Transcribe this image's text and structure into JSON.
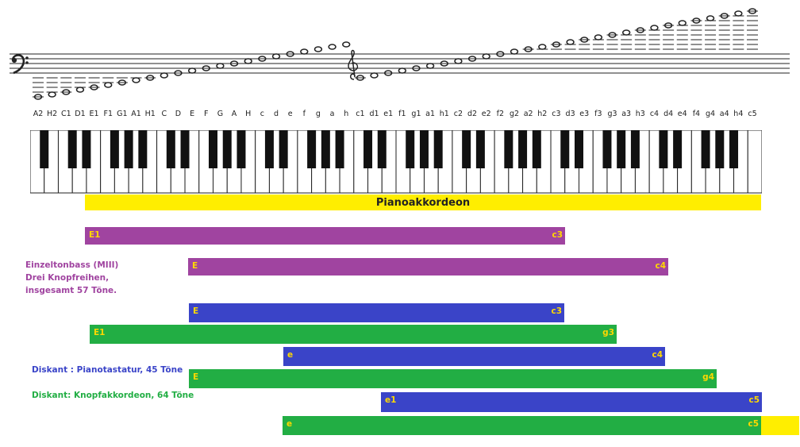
{
  "diagram": {
    "notes": [
      "A2",
      "H2",
      "C1",
      "D1",
      "E1",
      "F1",
      "G1",
      "A1",
      "H1",
      "C",
      "D",
      "E",
      "F",
      "G",
      "A",
      "H",
      "c",
      "d",
      "e",
      "f",
      "g",
      "a",
      "h",
      "c1",
      "d1",
      "e1",
      "f1",
      "g1",
      "a1",
      "h1",
      "c2",
      "d2",
      "e2",
      "f2",
      "g2",
      "a2",
      "h2",
      "c3",
      "d3",
      "e3",
      "f3",
      "g3",
      "a3",
      "h3",
      "c4",
      "d4",
      "e4",
      "f4",
      "g4",
      "a4",
      "h4",
      "c5"
    ],
    "title": "Pianoakkordeon",
    "colors": {
      "title_bar": "#ffee00",
      "purple": "#a044a0",
      "blue": "#3a44c8",
      "green": "#22ae44",
      "label": "#ffd800"
    },
    "legend": {
      "purple_lines": [
        "Einzeltonbass (MIII)",
        "Drei Knopfreihen,",
        "insgesamt 57 Töne."
      ],
      "blue": "Diskant :  Pianotastatur, 45 Töne",
      "green": "Diskant: Knopfakkordeon, 64 Töne"
    },
    "ranges": [
      {
        "start": "E1",
        "end": "c3",
        "color": "purple"
      },
      {
        "start": "E",
        "end": "c4",
        "color": "purple"
      },
      {
        "start": "E",
        "end": "c3",
        "color": "blue"
      },
      {
        "start": "E1",
        "end": "g3",
        "color": "green"
      },
      {
        "start": "e",
        "end": "c4",
        "color": "blue"
      },
      {
        "start": "E",
        "end": "g4",
        "color": "green"
      },
      {
        "start": "e1",
        "end": "c5",
        "color": "blue"
      },
      {
        "start": "e",
        "end": "c5",
        "color": "green"
      }
    ]
  }
}
